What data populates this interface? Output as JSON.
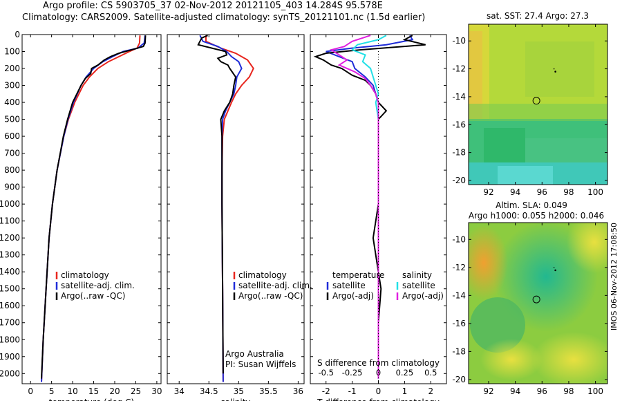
{
  "header": {
    "line1": "Argo profile: CS 5903705_37 02-Nov-2012 20121105_403 14.284S 95.578E",
    "line2": "Climatology: CARS2009. Satellite-adjusted climatology: synTS_20121101.nc (1.5d earlier)"
  },
  "credit": "IMOS 06-Nov-2012 17:08:50",
  "colors": {
    "climatology": "#e8261e",
    "satellite": "#1f2cd8",
    "argo": "#000000",
    "cyan": "#22e0e6",
    "magenta": "#e020e0"
  },
  "chart_data": [
    {
      "type": "line",
      "panel": "temperature",
      "xlabel": "temperature (deg C)",
      "ylabel": "",
      "xlim": [
        -2,
        31
      ],
      "ylim": [
        2060,
        0
      ],
      "xticks": [
        "0",
        "5",
        "10",
        "15",
        "20",
        "25",
        "30"
      ],
      "xtick_values": [
        0,
        5,
        10,
        15,
        20,
        25,
        30
      ],
      "yticks": [
        "0",
        "100",
        "200",
        "300",
        "400",
        "500",
        "600",
        "700",
        "800",
        "900",
        "1000",
        "1100",
        "1200",
        "1300",
        "1400",
        "1500",
        "1600",
        "1700",
        "1800",
        "1900",
        "2000"
      ],
      "ytick_values": [
        0,
        100,
        200,
        300,
        400,
        500,
        600,
        700,
        800,
        900,
        1000,
        1100,
        1200,
        1300,
        1400,
        1500,
        1600,
        1700,
        1800,
        1900,
        2000
      ],
      "legend": [
        "climatology",
        "satellite-adj. clim.",
        "Argo(..raw -QC)"
      ],
      "series": [
        {
          "name": "climatology",
          "color": "#e8261e",
          "depth": [
            5,
            50,
            80,
            100,
            130,
            160,
            200,
            250,
            300,
            400,
            500,
            600,
            800,
            1000,
            1200,
            1500,
            1800,
            2050
          ],
          "values": [
            26.0,
            25.9,
            25.3,
            23.5,
            21.0,
            18.5,
            16.0,
            14.0,
            12.5,
            10.5,
            9.0,
            7.9,
            6.3,
            5.2,
            4.4,
            3.7,
            3.0,
            2.6
          ]
        },
        {
          "name": "satellite-adj. clim.",
          "color": "#1f2cd8",
          "depth": [
            5,
            50,
            80,
            100,
            130,
            160,
            200,
            250,
            300,
            400,
            500,
            600,
            800,
            1000,
            1200,
            1500,
            1800,
            2050
          ],
          "values": [
            27.2,
            27.0,
            25.5,
            22.0,
            19.5,
            17.2,
            15.0,
            13.2,
            12.0,
            10.2,
            8.9,
            7.9,
            6.3,
            5.2,
            4.4,
            3.7,
            3.0,
            2.6
          ]
        },
        {
          "name": "Argo(..raw -QC)",
          "color": "#000000",
          "depth": [
            5,
            50,
            70,
            90,
            110,
            130,
            150,
            180,
            200,
            230,
            260,
            300,
            400,
            500,
            600,
            800,
            1000,
            1200,
            1500,
            1800,
            2030
          ],
          "values": [
            27.3,
            27.2,
            26.8,
            24.0,
            21.0,
            19.0,
            17.5,
            16.0,
            14.5,
            14.3,
            13.0,
            12.0,
            10.0,
            8.8,
            7.8,
            6.3,
            5.2,
            4.4,
            3.7,
            3.0,
            2.6
          ]
        }
      ]
    },
    {
      "type": "line",
      "panel": "salinity",
      "xlabel": "salinity",
      "xlim": [
        33.8,
        36.1
      ],
      "ylim": [
        2060,
        0
      ],
      "xticks": [
        "34",
        "34.5",
        "35",
        "35.5",
        "36"
      ],
      "xtick_values": [
        34,
        34.5,
        35,
        35.5,
        36
      ],
      "legend": [
        "climatology",
        "satellite-adj. clim.",
        "Argo(..raw -QC)"
      ],
      "annotations": [
        "Argo Australia",
        "PI: Susan Wijffels"
      ],
      "series": [
        {
          "name": "climatology",
          "color": "#e8261e",
          "depth": [
            5,
            40,
            80,
            110,
            150,
            200,
            250,
            300,
            350,
            400,
            450,
            500,
            600,
            800,
            1000,
            1500,
            2050
          ],
          "values": [
            34.45,
            34.45,
            34.7,
            34.95,
            35.15,
            35.25,
            35.18,
            35.05,
            34.95,
            34.88,
            34.82,
            34.76,
            34.73,
            34.72,
            34.72,
            34.73,
            34.74
          ]
        },
        {
          "name": "satellite-adj. clim.",
          "color": "#1f2cd8",
          "depth": [
            5,
            40,
            70,
            100,
            130,
            160,
            200,
            250,
            300,
            350,
            400,
            450,
            500,
            600,
            800,
            1000,
            1500,
            2050
          ],
          "values": [
            34.35,
            34.4,
            34.65,
            34.8,
            34.88,
            35.0,
            35.05,
            34.97,
            34.95,
            34.92,
            34.85,
            34.78,
            34.73,
            34.72,
            34.72,
            34.72,
            34.73,
            34.74
          ]
        },
        {
          "name": "Argo(..raw -QC)",
          "color": "#000000",
          "depth": [
            5,
            20,
            40,
            60,
            80,
            100,
            120,
            140,
            160,
            180,
            200,
            250,
            300,
            350,
            400,
            450,
            500,
            550,
            600,
            800,
            1000,
            1500,
            2000
          ],
          "values": [
            34.48,
            34.38,
            34.35,
            34.32,
            34.55,
            34.78,
            34.8,
            34.65,
            34.7,
            34.82,
            34.85,
            34.95,
            34.92,
            34.9,
            34.85,
            34.76,
            34.7,
            34.71,
            34.72,
            34.72,
            34.72,
            34.73,
            34.74
          ]
        }
      ]
    },
    {
      "type": "line",
      "panel": "difference",
      "xlabel": "T difference from climatology",
      "xlabel_top": "S difference from climatology",
      "xlim": [
        -2.6,
        2.6
      ],
      "ylim": [
        2060,
        0
      ],
      "xticks": [
        "-2",
        "-1",
        "0",
        "1",
        "2"
      ],
      "xtick_values": [
        -2,
        -1,
        0,
        1,
        2
      ],
      "sticks": [
        "-0.5",
        "-0.25",
        "0",
        "0.25",
        "0.5"
      ],
      "stick_values": [
        -2,
        -1,
        0,
        1,
        2
      ],
      "legend_temp_title": "temperature",
      "legend_sal_title": "salinity",
      "legend_temp": [
        "satellite",
        "Argo(-adj)"
      ],
      "legend_sal": [
        "satellite",
        "Argo(-adj)"
      ],
      "series": [
        {
          "name": "T satellite",
          "color": "#1f2cd8",
          "depth": [
            5,
            30,
            60,
            80,
            100,
            130,
            160,
            200,
            250,
            300,
            400,
            500,
            600,
            1000,
            1500,
            2030
          ],
          "values": [
            1.2,
            1.3,
            0.3,
            -1.0,
            -2.0,
            -1.5,
            -1.0,
            -0.9,
            -0.5,
            -0.2,
            0.0,
            0.0,
            0.0,
            0.0,
            0.0,
            0.0
          ]
        },
        {
          "name": "T Argo(-adj)",
          "color": "#000000",
          "depth": [
            5,
            30,
            60,
            90,
            110,
            130,
            150,
            180,
            200,
            220,
            240,
            270,
            300,
            350,
            400,
            450,
            500,
            600,
            800,
            1000,
            1200,
            1500,
            1700,
            2030
          ],
          "values": [
            1.3,
            1.0,
            1.8,
            -0.7,
            -2.0,
            -2.4,
            -2.1,
            -1.8,
            -1.4,
            -1.2,
            -1.0,
            -0.5,
            -0.3,
            -0.1,
            0.0,
            0.3,
            0.0,
            0.0,
            0.0,
            0.0,
            -0.2,
            0.1,
            0.0,
            0.0
          ]
        },
        {
          "name": "S satellite",
          "color": "#22e0e6",
          "depth": [
            5,
            30,
            60,
            90,
            120,
            160,
            200,
            250,
            300,
            350,
            400,
            500,
            600,
            1000,
            1500,
            2030
          ],
          "values": [
            0.3,
            0.0,
            -0.8,
            -1.0,
            -0.5,
            -0.6,
            -0.3,
            -0.2,
            -0.1,
            0.0,
            -0.1,
            0.0,
            0.0,
            0.0,
            0.0,
            0.0
          ]
        },
        {
          "name": "S Argo(-adj)",
          "color": "#e020e0",
          "depth": [
            5,
            40,
            70,
            90,
            120,
            150,
            180,
            220,
            260,
            300,
            350,
            400,
            500,
            1000,
            2030
          ],
          "values": [
            -0.3,
            -1.0,
            -1.3,
            -1.8,
            -1.5,
            -1.2,
            -1.5,
            -0.9,
            -0.5,
            -0.3,
            -0.1,
            0.0,
            0.0,
            0.0,
            0.0
          ]
        }
      ]
    },
    {
      "type": "heatmap",
      "panel": "sst_map",
      "title": "sat. SST: 27.4  Argo: 27.3",
      "xlim": [
        90.5,
        100.9
      ],
      "ylim": [
        -20.3,
        -8.8
      ],
      "xticks": [
        "92",
        "94",
        "96",
        "98",
        "100"
      ],
      "xtick_values": [
        92,
        94,
        96,
        98,
        100
      ],
      "yticks": [
        "-10",
        "-12",
        "-14",
        "-16",
        "-18",
        "-20"
      ],
      "ytick_values": [
        -10,
        -12,
        -14,
        -16,
        -18,
        -20
      ],
      "profile_lon": 95.578,
      "profile_lat": -14.284,
      "track_lon": 97.0,
      "track_lat": -12.2
    },
    {
      "type": "heatmap",
      "panel": "sla_map",
      "title": "Altim. SLA: 0.049",
      "subtitle": "Argo h1000: 0.055  h2000: 0.046",
      "xlim": [
        90.5,
        100.9
      ],
      "ylim": [
        -20.3,
        -8.8
      ],
      "xticks": [
        "92",
        "94",
        "96",
        "98",
        "100"
      ],
      "xtick_values": [
        92,
        94,
        96,
        98,
        100
      ],
      "yticks": [
        "-10",
        "-12",
        "-14",
        "-16",
        "-18",
        "-20"
      ],
      "ytick_values": [
        -10,
        -12,
        -14,
        -16,
        -18,
        -20
      ],
      "profile_lon": 95.578,
      "profile_lat": -14.284,
      "track_lon": 97.0,
      "track_lat": -12.2
    }
  ]
}
